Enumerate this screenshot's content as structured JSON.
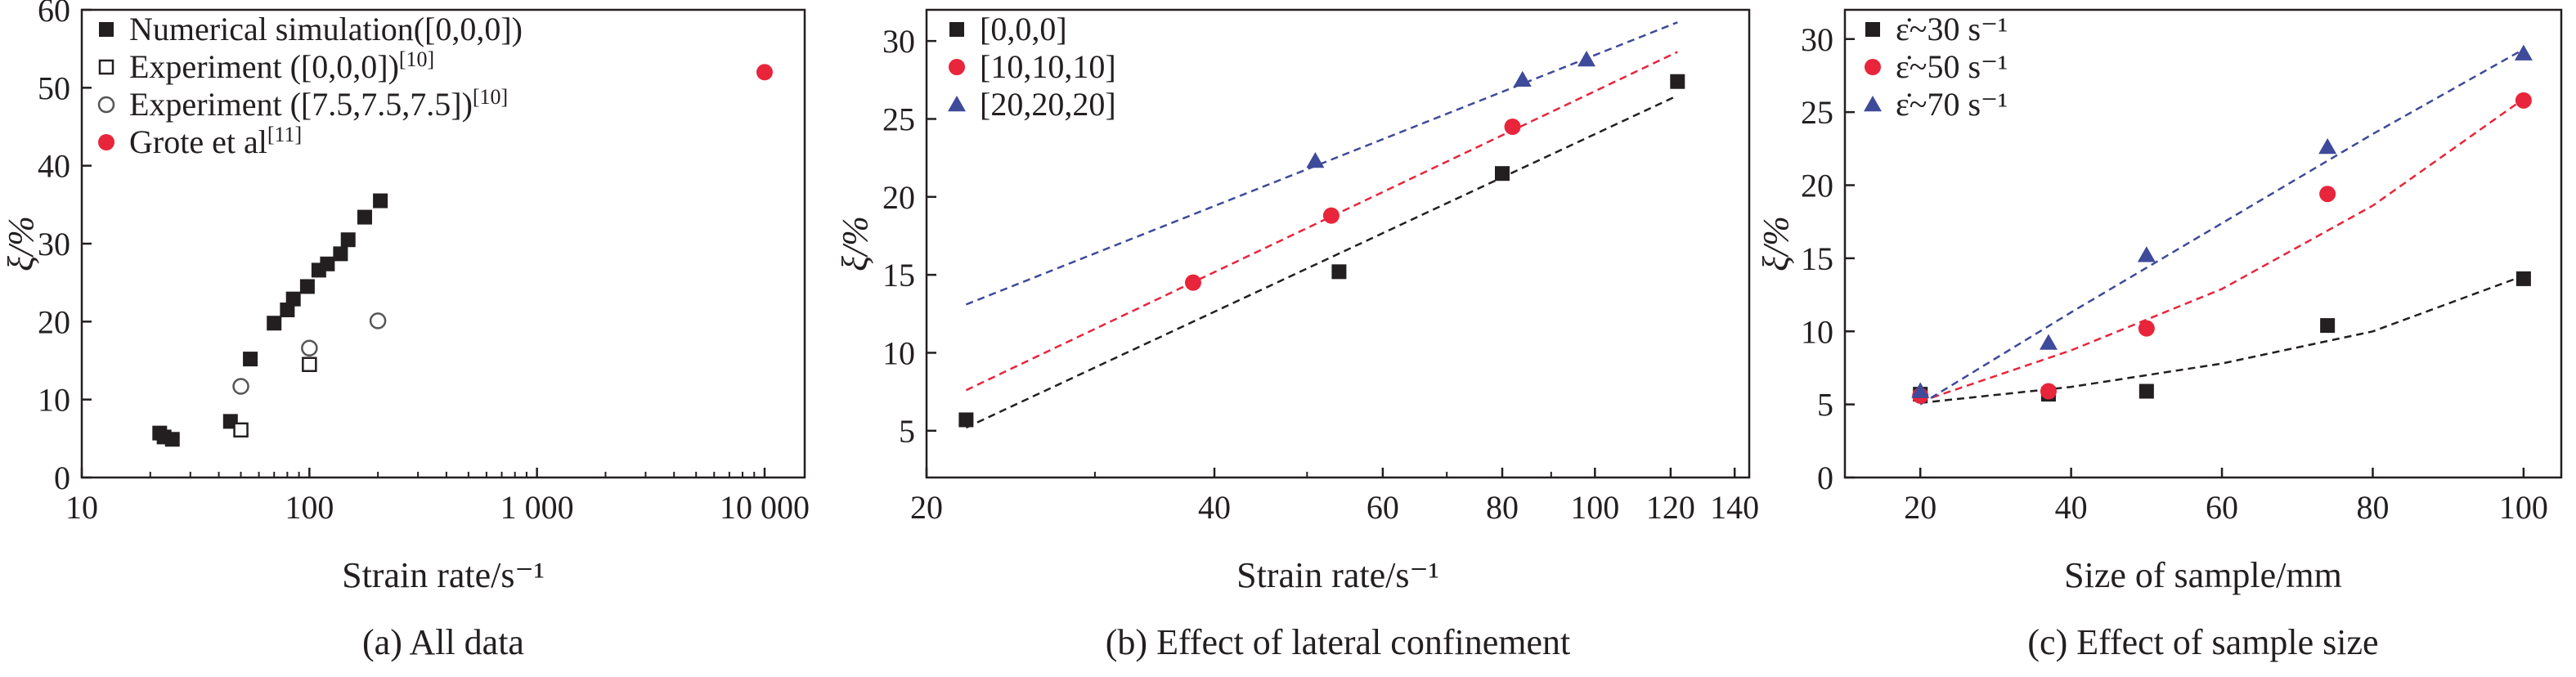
{
  "chart_data": [
    {
      "type": "scatter",
      "panel": "a",
      "caption": "(a) All data",
      "xlabel": "Strain rate/s⁻¹",
      "ylabel": "ξ/%",
      "xscale": "log",
      "xlim": [
        10,
        15000
      ],
      "ylim": [
        0,
        60
      ],
      "xticks": [
        10,
        100,
        1000,
        10000
      ],
      "xtick_labels": [
        "10",
        "100",
        "1 000",
        "10 000"
      ],
      "yticks": [
        0,
        10,
        20,
        30,
        40,
        50,
        60
      ],
      "legend_position": "top-left",
      "series": [
        {
          "name": "Numerical simulation([0,0,0])",
          "marker": "filled-square",
          "color": "#231f20",
          "points": [
            [
              22,
              5.7
            ],
            [
              23,
              5.2
            ],
            [
              25,
              4.9
            ],
            [
              45,
              7.2
            ],
            [
              55,
              15.2
            ],
            [
              70,
              19.8
            ],
            [
              80,
              21.5
            ],
            [
              85,
              22.9
            ],
            [
              98,
              24.5
            ],
            [
              110,
              26.6
            ],
            [
              120,
              27.4
            ],
            [
              137,
              28.7
            ],
            [
              148,
              30.5
            ],
            [
              175,
              33.4
            ],
            [
              205,
              35.5
            ]
          ]
        },
        {
          "name": "Experiment ([0,0,0])[10]",
          "marker": "open-square",
          "color": "#231f20",
          "points": [
            [
              50,
              6.1
            ],
            [
              100,
              14.5
            ]
          ]
        },
        {
          "name": "Experiment ([7.5,7.5,7.5])[10]",
          "marker": "open-circle",
          "color": "#555555",
          "points": [
            [
              50,
              11.7
            ],
            [
              100,
              16.6
            ],
            [
              200,
              20.1
            ]
          ]
        },
        {
          "name": "Grote et al[11]",
          "marker": "filled-circle",
          "color": "#e8253b",
          "points": [
            [
              10000,
              52.0
            ]
          ]
        }
      ]
    },
    {
      "type": "scatter",
      "panel": "b",
      "caption": "(b) Effect of lateral confinement",
      "xlabel": "Strain rate/s⁻¹",
      "ylabel": "ξ/%",
      "xscale": "log",
      "xlim": [
        20,
        145
      ],
      "ylim": [
        2,
        32
      ],
      "xticks": [
        20,
        40,
        60,
        80,
        100,
        120,
        140
      ],
      "yticks": [
        5,
        10,
        15,
        20,
        25,
        30
      ],
      "legend_position": "top-left",
      "series": [
        {
          "name": "[0,0,0]",
          "marker": "filled-square",
          "color": "#231f20",
          "points": [
            [
              22,
              5.7
            ],
            [
              54,
              15.2
            ],
            [
              80,
              21.5
            ],
            [
              122,
              27.4
            ]
          ],
          "fit": [
            [
              22,
              5.2
            ],
            [
              122,
              26.5
            ]
          ]
        },
        {
          "name": "[10,10,10]",
          "marker": "filled-circle",
          "color": "#e8253b",
          "points": [
            [
              38,
              14.5
            ],
            [
              53,
              18.8
            ],
            [
              82,
              24.5
            ]
          ],
          "fit": [
            [
              22,
              7.6
            ],
            [
              122,
              29.3
            ]
          ]
        },
        {
          "name": "[20,20,20]",
          "marker": "filled-triangle",
          "color": "#3e4a9a",
          "points": [
            [
              51,
              22.3
            ],
            [
              84,
              27.5
            ],
            [
              98,
              28.8
            ]
          ],
          "fit": [
            [
              22,
              13.1
            ],
            [
              122,
              31.2
            ]
          ]
        }
      ]
    },
    {
      "type": "scatter",
      "panel": "c",
      "caption": "(c) Effect of sample size",
      "xlabel": "Size of sample/mm",
      "ylabel": "ξ/%",
      "xscale": "linear",
      "xlim": [
        10,
        105
      ],
      "ylim": [
        0,
        32
      ],
      "xticks": [
        20,
        40,
        60,
        80,
        100
      ],
      "yticks": [
        0,
        5,
        10,
        15,
        20,
        25,
        30
      ],
      "legend_position": "top-left",
      "series": [
        {
          "name": "ε̇~30 s⁻¹",
          "marker": "filled-square",
          "color": "#231f20",
          "points": [
            [
              20,
              5.7
            ],
            [
              37,
              5.7
            ],
            [
              50,
              5.9
            ],
            [
              74,
              10.4
            ],
            [
              100,
              13.6
            ]
          ],
          "fit": [
            [
              20,
              5.1
            ],
            [
              40,
              6.2
            ],
            [
              60,
              7.8
            ],
            [
              80,
              10.0
            ],
            [
              100,
              13.8
            ]
          ]
        },
        {
          "name": "ε̇~50 s⁻¹",
          "marker": "filled-circle",
          "color": "#e8253b",
          "points": [
            [
              20,
              5.6
            ],
            [
              37,
              5.9
            ],
            [
              50,
              10.2
            ],
            [
              74,
              19.4
            ],
            [
              100,
              25.8
            ]
          ],
          "fit": [
            [
              20,
              5.2
            ],
            [
              40,
              8.7
            ],
            [
              60,
              12.9
            ],
            [
              80,
              18.6
            ],
            [
              100,
              25.9
            ]
          ]
        },
        {
          "name": "ε̇~70 s⁻¹",
          "marker": "filled-triangle",
          "color": "#3e4a9a",
          "points": [
            [
              20,
              5.9
            ],
            [
              37,
              9.2
            ],
            [
              50,
              15.2
            ],
            [
              74,
              22.6
            ],
            [
              100,
              29.0
            ]
          ],
          "fit": [
            [
              20,
              5.0
            ],
            [
              40,
              11.3
            ],
            [
              60,
              17.4
            ],
            [
              80,
              23.5
            ],
            [
              100,
              29.3
            ]
          ]
        }
      ]
    }
  ]
}
